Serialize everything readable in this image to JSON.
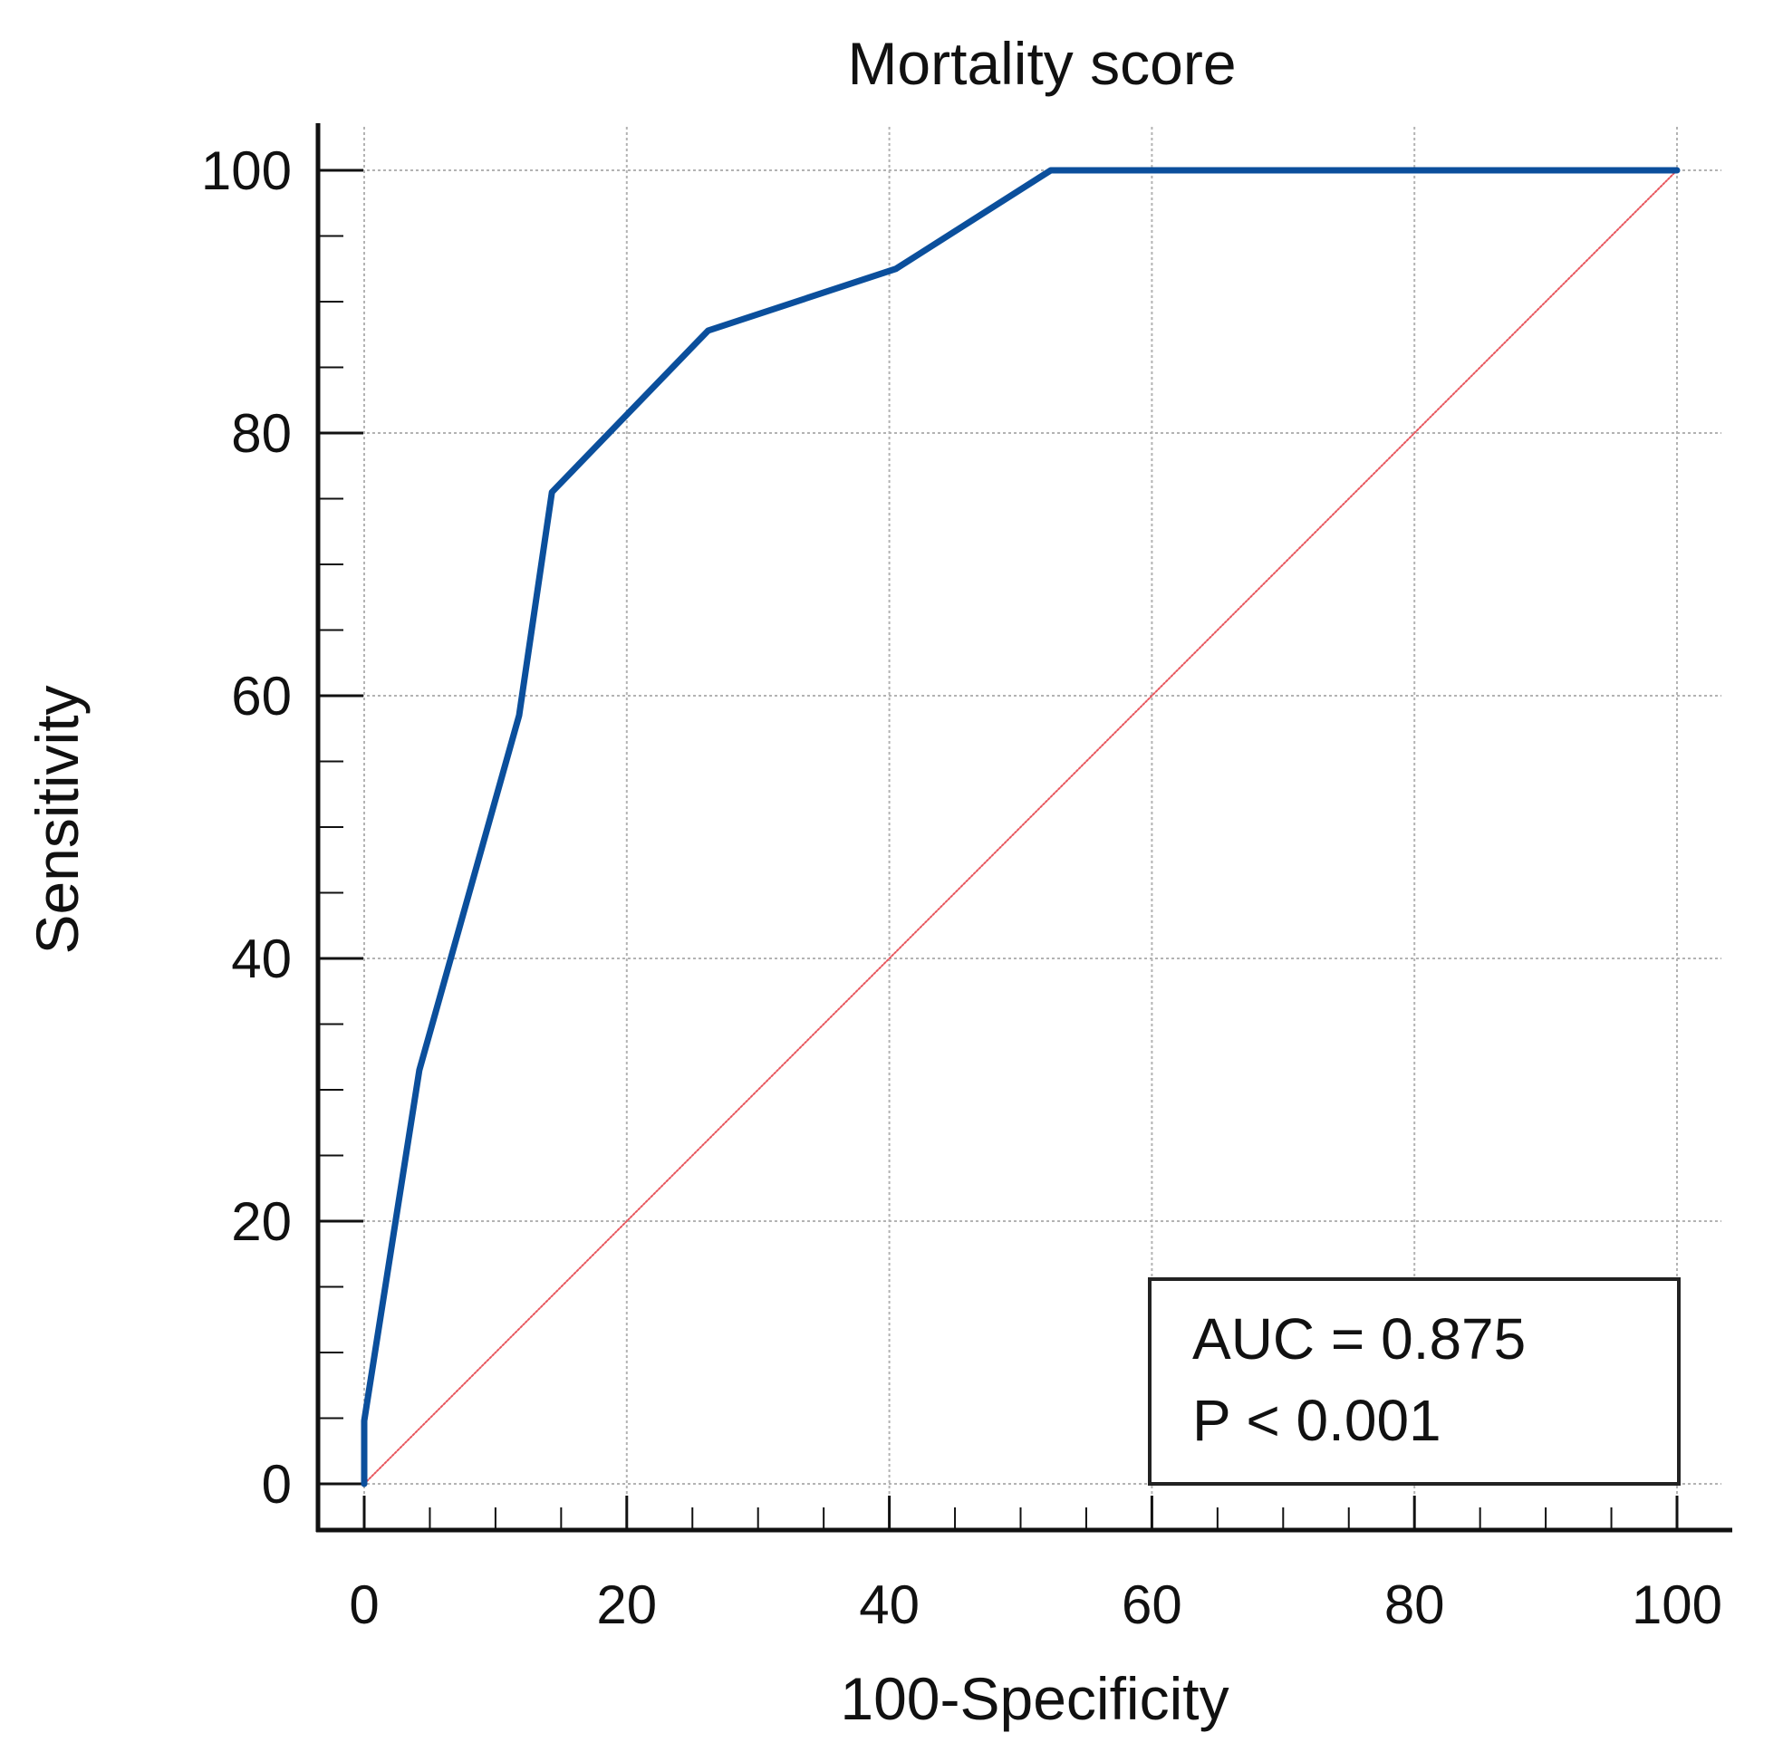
{
  "chart_data": {
    "type": "line",
    "title": "Mortality score",
    "xlabel": "100-Specificity",
    "ylabel": "Sensitivity",
    "xlim": [
      0,
      100
    ],
    "ylim": [
      0,
      100
    ],
    "xticks": [
      0,
      20,
      40,
      60,
      80,
      100
    ],
    "yticks": [
      0,
      20,
      40,
      60,
      80,
      100
    ],
    "grid": true,
    "series": [
      {
        "name": "ROC curve",
        "color": "#0b4f9c",
        "points": [
          [
            0,
            0
          ],
          [
            0,
            4.8
          ],
          [
            4.2,
            31.5
          ],
          [
            11.8,
            58.5
          ],
          [
            14.3,
            75.5
          ],
          [
            26.2,
            87.8
          ],
          [
            40.5,
            92.5
          ],
          [
            52.3,
            100
          ],
          [
            100,
            100
          ]
        ]
      },
      {
        "name": "Reference line",
        "color": "#e8585f",
        "points": [
          [
            0,
            0
          ],
          [
            100,
            100
          ]
        ]
      }
    ],
    "annotation": {
      "auc_text": "AUC = 0.875",
      "p_text": "P < 0.001",
      "placement": "bottom-right"
    }
  }
}
